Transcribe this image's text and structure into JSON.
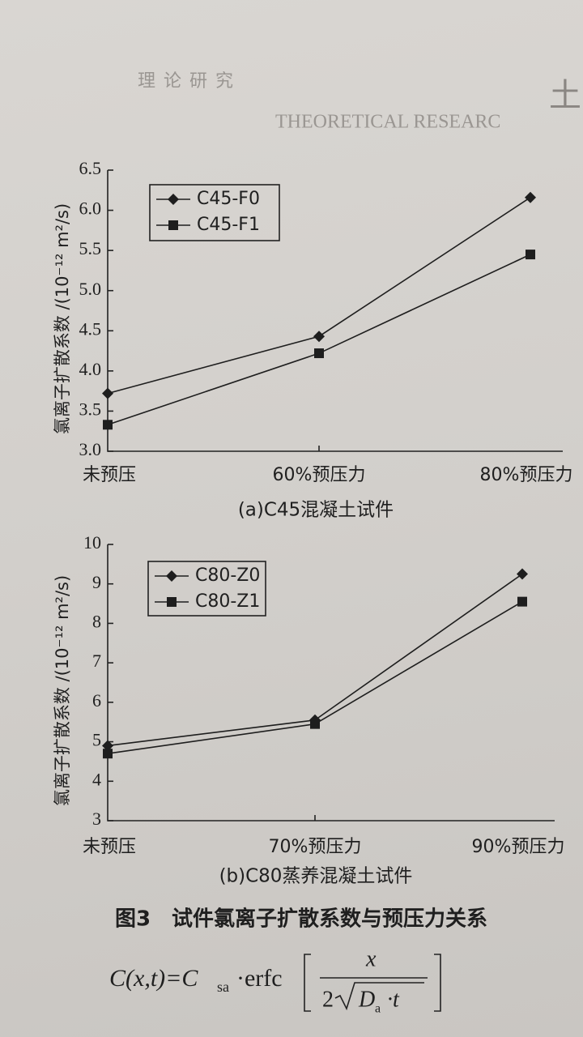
{
  "header": {
    "section": "理论研究",
    "section_en": "THEORETICAL RESEARC",
    "mark": "土"
  },
  "chart_data": [
    {
      "type": "line",
      "subtitle": "(a)C45混凝土试件",
      "ylabel": "氯离子扩散系数 /(10⁻¹² m²/s)",
      "categories": [
        "未预压",
        "60%预压力",
        "80%预压力"
      ],
      "series": [
        {
          "name": "C45-F0",
          "color": "#1e1e1e",
          "marker": "diamond",
          "values": [
            3.72,
            4.43,
            6.16
          ]
        },
        {
          "name": "C45-F1",
          "color": "#1e1e1e",
          "marker": "square",
          "values": [
            3.33,
            4.22,
            5.45
          ]
        }
      ],
      "ylim": [
        3.0,
        6.5
      ],
      "yticks": [
        {
          "value": 3,
          "label": "3.0"
        },
        {
          "value": 3.5,
          "label": "3.5"
        },
        {
          "value": 4,
          "label": "4.0"
        },
        {
          "value": 4.5,
          "label": "4.5"
        },
        {
          "value": 5,
          "label": "5.0"
        },
        {
          "value": 5.5,
          "label": "5.5"
        },
        {
          "value": 6,
          "label": "6.0"
        },
        {
          "value": 6.5,
          "label": "6.5"
        }
      ],
      "legend": "upper left"
    },
    {
      "type": "line",
      "subtitle": "(b)C80蒸养混凝土试件",
      "ylabel": "氯离子扩散系数 /(10⁻¹² m²/s)",
      "categories": [
        "未预压",
        "70%预压力",
        "90%预压力"
      ],
      "series": [
        {
          "name": "C80-Z0",
          "color": "#1e1e1e",
          "marker": "diamond",
          "values": [
            4.9,
            5.55,
            9.25
          ]
        },
        {
          "name": "C80-Z1",
          "color": "#1e1e1e",
          "marker": "square",
          "values": [
            4.7,
            5.45,
            8.55
          ]
        }
      ],
      "ylim": [
        3,
        10
      ],
      "yticks": [
        3,
        4,
        5,
        6,
        7,
        8,
        9,
        10
      ],
      "legend": "upper left"
    }
  ],
  "figure_caption": "图3　试件氯离子扩散系数与预压力关系",
  "formula": {
    "lhs": "C(x,t)=C",
    "sub1": "sa",
    "op": "·erfc",
    "num": "x",
    "two": "2",
    "d": "D",
    "sub2": "a",
    "t": "·t"
  }
}
